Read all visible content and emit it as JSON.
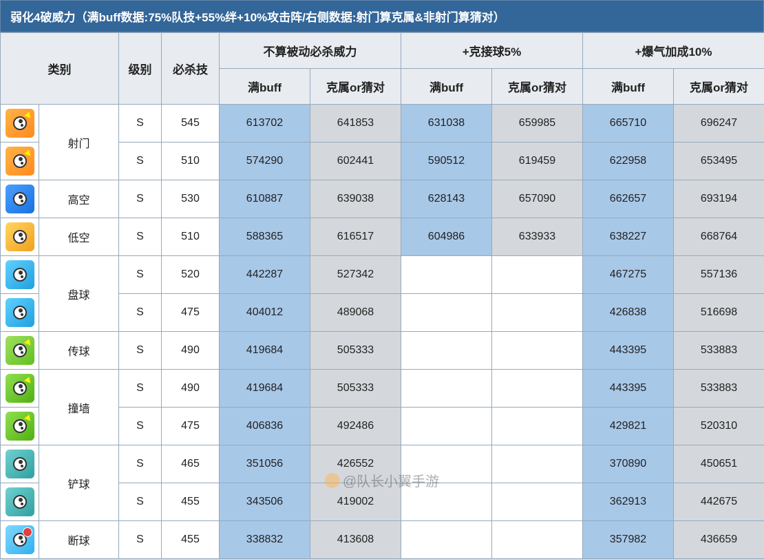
{
  "title": "弱化4破威力（满buff数据:75%队技+55%绊+10%攻击阵/右侧数据:射门算克属&非射门算猜对）",
  "headers": {
    "category": "类别",
    "level": "级别",
    "skill": "必杀技",
    "group1": "不算被动必杀威力",
    "group2": "+克接球5%",
    "group3": "+爆气加成10%",
    "sub_full": "满buff",
    "sub_vs": "克属or猜对"
  },
  "categories": [
    {
      "name": "射门",
      "icon": "i-orange",
      "decor": "arrow",
      "rows": 2
    },
    {
      "name": "高空",
      "icon": "i-blue",
      "decor": "",
      "rows": 1
    },
    {
      "name": "低空",
      "icon": "i-gold",
      "decor": "",
      "rows": 1
    },
    {
      "name": "盘球",
      "icon": "i-cyan",
      "decor": "",
      "rows": 2
    },
    {
      "name": "传球",
      "icon": "i-green",
      "decor": "arrow",
      "rows": 1
    },
    {
      "name": "撞墙",
      "icon": "i-green2",
      "decor": "arrow",
      "rows": 2
    },
    {
      "name": "铲球",
      "icon": "i-teal",
      "decor": "",
      "rows": 2
    },
    {
      "name": "断球",
      "icon": "i-sky",
      "decor": "badge-red",
      "rows": 1
    }
  ],
  "rows": [
    {
      "lvl": "S",
      "skill": "545",
      "g1a": "613702",
      "g1b": "641853",
      "g2a": "631038",
      "g2b": "659985",
      "g3a": "665710",
      "g3b": "696247"
    },
    {
      "lvl": "S",
      "skill": "510",
      "g1a": "574290",
      "g1b": "602441",
      "g2a": "590512",
      "g2b": "619459",
      "g3a": "622958",
      "g3b": "653495"
    },
    {
      "lvl": "S",
      "skill": "530",
      "g1a": "610887",
      "g1b": "639038",
      "g2a": "628143",
      "g2b": "657090",
      "g3a": "662657",
      "g3b": "693194"
    },
    {
      "lvl": "S",
      "skill": "510",
      "g1a": "588365",
      "g1b": "616517",
      "g2a": "604986",
      "g2b": "633933",
      "g3a": "638227",
      "g3b": "668764"
    },
    {
      "lvl": "S",
      "skill": "520",
      "g1a": "442287",
      "g1b": "527342",
      "g2a": "",
      "g2b": "",
      "g3a": "467275",
      "g3b": "557136"
    },
    {
      "lvl": "S",
      "skill": "475",
      "g1a": "404012",
      "g1b": "489068",
      "g2a": "",
      "g2b": "",
      "g3a": "426838",
      "g3b": "516698"
    },
    {
      "lvl": "S",
      "skill": "490",
      "g1a": "419684",
      "g1b": "505333",
      "g2a": "",
      "g2b": "",
      "g3a": "443395",
      "g3b": "533883"
    },
    {
      "lvl": "S",
      "skill": "490",
      "g1a": "419684",
      "g1b": "505333",
      "g2a": "",
      "g2b": "",
      "g3a": "443395",
      "g3b": "533883"
    },
    {
      "lvl": "S",
      "skill": "475",
      "g1a": "406836",
      "g1b": "492486",
      "g2a": "",
      "g2b": "",
      "g3a": "429821",
      "g3b": "520310"
    },
    {
      "lvl": "S",
      "skill": "465",
      "g1a": "351056",
      "g1b": "426552",
      "g2a": "",
      "g2b": "",
      "g3a": "370890",
      "g3b": "450651"
    },
    {
      "lvl": "S",
      "skill": "455",
      "g1a": "343506",
      "g1b": "419002",
      "g2a": "",
      "g2b": "",
      "g3a": "362913",
      "g3b": "442675"
    },
    {
      "lvl": "S",
      "skill": "455",
      "g1a": "338832",
      "g1b": "413608",
      "g2a": "",
      "g2b": "",
      "g3a": "357982",
      "g3b": "436659"
    }
  ],
  "watermark": "@队长小翼手游",
  "style": {
    "title_bg": "#336699",
    "title_color": "#ffffff",
    "hl_blue": "#a8c8e8",
    "hl_gray": "#d4d8dc",
    "hl_white": "#ffffff",
    "header_bg": "#e8ecf0",
    "border": "#95a9bd",
    "font_main": 16,
    "font_header": 17
  }
}
